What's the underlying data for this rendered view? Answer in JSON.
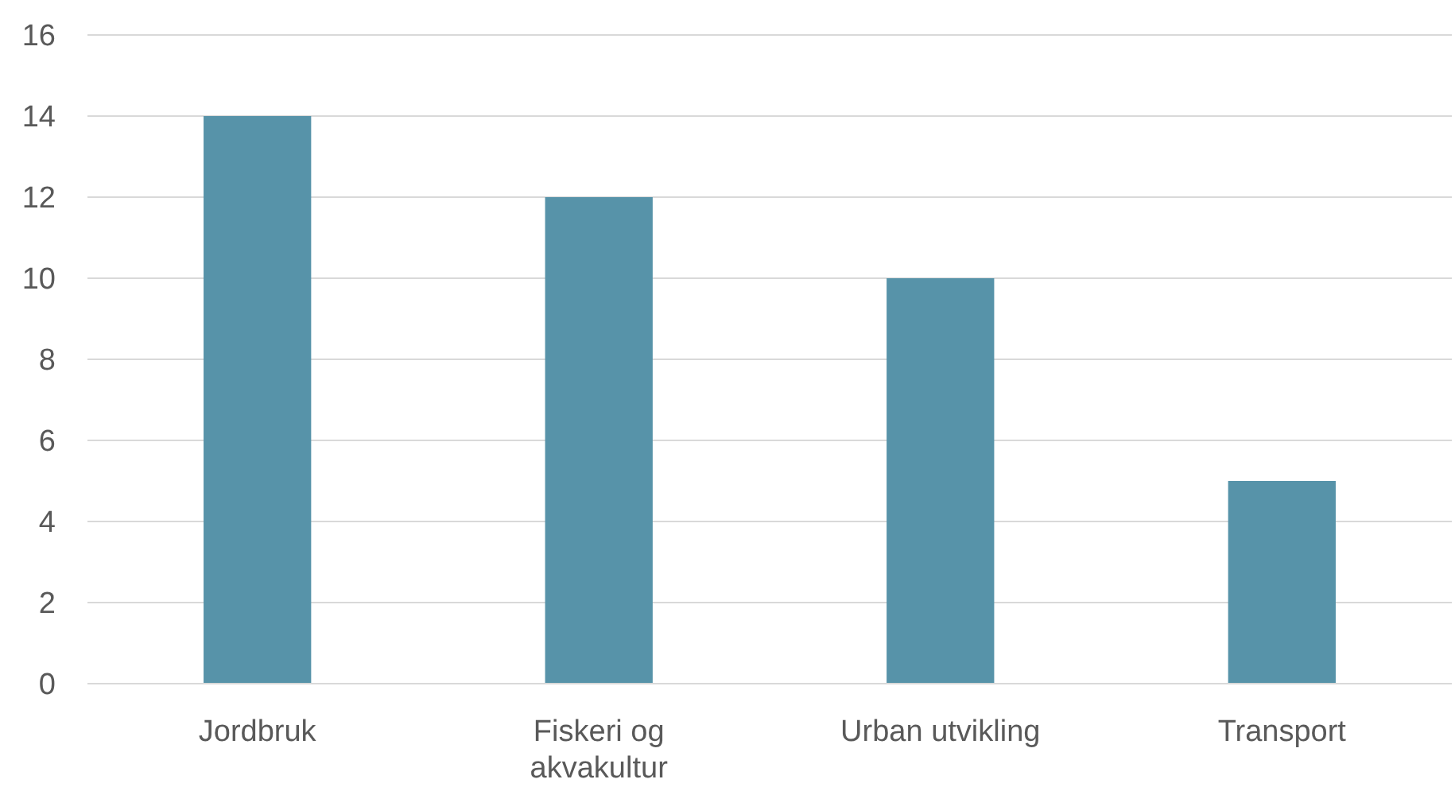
{
  "chart_data": {
    "type": "bar",
    "categories": [
      "Jordbruk",
      "Fiskeri og akvakultur",
      "Urban utvikling",
      "Transport"
    ],
    "values": [
      14,
      12,
      10,
      5
    ],
    "color": "#5793a9",
    "ylim": [
      0,
      16
    ],
    "yticks": [
      0,
      2,
      4,
      6,
      8,
      10,
      12,
      14,
      16
    ],
    "grid": "y"
  }
}
